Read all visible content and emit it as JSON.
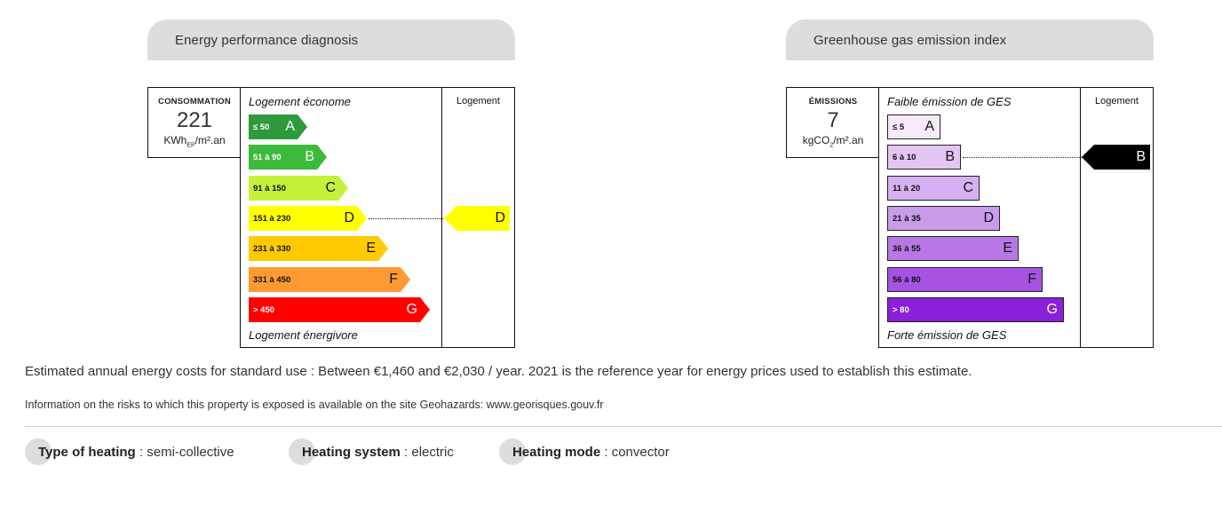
{
  "energy": {
    "title": "Energy performance diagnosis",
    "label": {
      "caption": "CONSOMMATION",
      "value": "221",
      "unit_main": "KWh",
      "unit_sub": "EP",
      "unit_tail": "/m².an"
    },
    "top_caption": "Logement économe",
    "bottom_caption": "Logement énergivore",
    "column_header": "Logement",
    "classes": [
      {
        "range": "≤ 50",
        "letter": "A",
        "color": "#2f9a3c",
        "text_color": "#ffffff"
      },
      {
        "range": "51 à 90",
        "letter": "B",
        "color": "#3cba3a",
        "text_color": "#ffffff"
      },
      {
        "range": "91 à 150",
        "letter": "C",
        "color": "#c5f13a",
        "text_color": "#111111"
      },
      {
        "range": "151 à 230",
        "letter": "D",
        "color": "#ffff00",
        "text_color": "#111111"
      },
      {
        "range": "231 à 330",
        "letter": "E",
        "color": "#ffcb00",
        "text_color": "#111111"
      },
      {
        "range": "331 à 450",
        "letter": "F",
        "color": "#ff9a33",
        "text_color": "#111111"
      },
      {
        "range": "> 450",
        "letter": "G",
        "color": "#ff0000",
        "text_color": "#ffffff"
      }
    ],
    "current_class": "D",
    "indicator_color": "#ffff00"
  },
  "ghg": {
    "title": "Greenhouse gas emission index",
    "label": {
      "caption": "ÉMISSIONS",
      "value": "7",
      "unit_main": "kgCO",
      "unit_sub": "2",
      "unit_tail": "/m².an"
    },
    "top_caption": "Faible émission de GES",
    "bottom_caption": "Forte émission de GES",
    "column_header": "Logement",
    "classes": [
      {
        "range": "≤ 5",
        "letter": "A",
        "color": "#f6eafb",
        "text_color": "#111111"
      },
      {
        "range": "6 à 10",
        "letter": "B",
        "color": "#e3c6f3",
        "text_color": "#111111"
      },
      {
        "range": "11 à 20",
        "letter": "C",
        "color": "#d6b0f0",
        "text_color": "#111111"
      },
      {
        "range": "21 à 35",
        "letter": "D",
        "color": "#c99be9",
        "text_color": "#111111"
      },
      {
        "range": "36 à 55",
        "letter": "E",
        "color": "#b778e6",
        "text_color": "#111111"
      },
      {
        "range": "56 à 80",
        "letter": "F",
        "color": "#a653e4",
        "text_color": "#111111"
      },
      {
        "range": "> 80",
        "letter": "G",
        "color": "#8a20d9",
        "text_color": "#ffffff"
      }
    ],
    "current_class": "B",
    "indicator_color": "#000000"
  },
  "costs_text": "Estimated annual energy costs for standard use : Between €1,460 and €2,030 / year. 2021 is the reference year for energy prices used to establish this estimate.",
  "risks_text": "Information on the risks to which this property is exposed is available on the site Geohazards: www.georisques.gouv.fr",
  "features": [
    {
      "label": "Type of heating",
      "value": " : semi-collective"
    },
    {
      "label": "Heating system",
      "value": " : electric"
    },
    {
      "label": "Heating mode",
      "value": " : convector"
    }
  ]
}
